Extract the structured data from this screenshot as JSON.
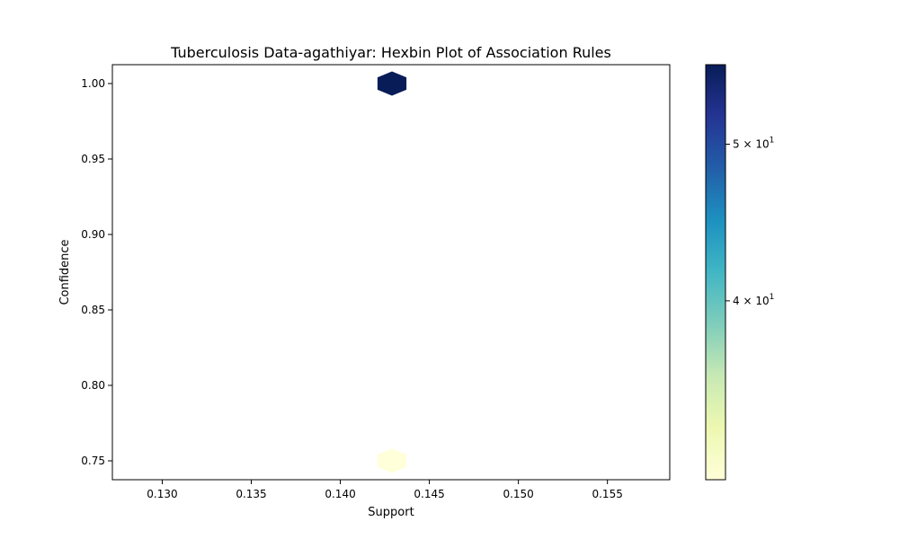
{
  "chart_data": {
    "type": "hexbin",
    "title": "Tuberculosis Data-agathiyar: Hexbin Plot of Association Rules",
    "xlabel": "Support",
    "ylabel": "Confidence",
    "xlim": [
      0.1272,
      0.1585
    ],
    "ylim": [
      0.7375,
      1.0125
    ],
    "xticks": [
      0.13,
      0.135,
      0.14,
      0.145,
      0.15,
      0.155
    ],
    "xtick_labels": [
      "0.130",
      "0.135",
      "0.140",
      "0.145",
      "0.150",
      "0.155"
    ],
    "yticks": [
      0.75,
      0.8,
      0.85,
      0.9,
      0.95,
      1.0
    ],
    "ytick_labels": [
      "0.75",
      "0.80",
      "0.85",
      "0.90",
      "0.95",
      "1.00"
    ],
    "grid": false,
    "bins": [
      {
        "x": 0.1429,
        "y": 1.0,
        "count": 56
      },
      {
        "x": 0.1429,
        "y": 0.75,
        "count": 31
      }
    ],
    "colorbar": {
      "colormap": "YlGnBu",
      "scale": "log",
      "range": [
        31,
        56
      ],
      "ticks": [
        {
          "value": 40,
          "mantissa": "4",
          "base": "10",
          "exponent": "1"
        },
        {
          "value": 50,
          "mantissa": "5",
          "base": "10",
          "exponent": "1"
        }
      ]
    },
    "colors": {
      "ylgnbu": [
        "#ffffd9",
        "#edf8b1",
        "#c7e9b4",
        "#7fcdbb",
        "#41b6c4",
        "#1d91c0",
        "#225ea8",
        "#253494",
        "#081d58"
      ]
    }
  }
}
